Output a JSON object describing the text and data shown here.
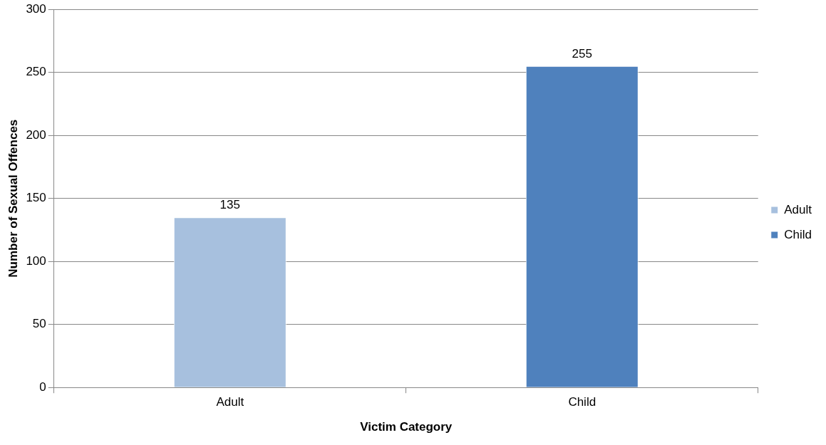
{
  "chart_data": {
    "type": "bar",
    "xlabel": "Victim Category",
    "ylabel": "Number of Sexual Offences",
    "categories": [
      "Adult",
      "Child"
    ],
    "series": [
      {
        "name": "Adult",
        "color": "#a7c0de",
        "values": [
          135,
          null
        ]
      },
      {
        "name": "Child",
        "color": "#4f81bd",
        "values": [
          null,
          255
        ]
      }
    ],
    "ylim": [
      0,
      300
    ],
    "yticks": [
      0,
      50,
      100,
      150,
      200,
      250,
      300
    ],
    "grid": "y",
    "legend": "right",
    "data_labels": true
  }
}
